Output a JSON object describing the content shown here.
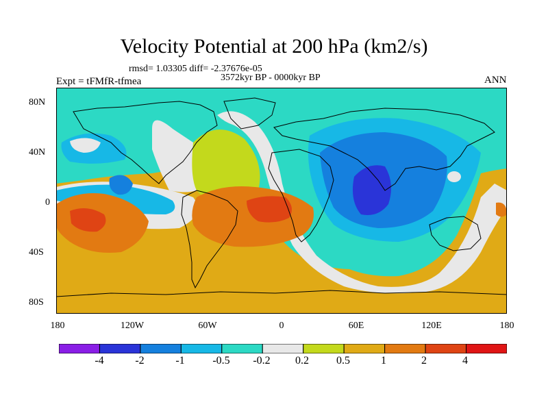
{
  "title": "Velocity Potential at 200 hPa (km2/s)",
  "rmsd_text": "rmsd= 1.03305 diff= -2.37676e-05",
  "period": "3572kyr BP - 0000kyr BP",
  "experiment": "Expt = tFMfR-tfmea",
  "season": "ANN",
  "chart_data": {
    "type": "filled-contour-map",
    "variable": "Velocity Potential at 200 hPa",
    "units": "km2/s",
    "lon_range": [
      -180,
      180
    ],
    "lat_range": [
      -90,
      90
    ],
    "y_ticks": [
      "80N",
      "40N",
      "0",
      "40S",
      "80S"
    ],
    "x_ticks": [
      "180",
      "120W",
      "60W",
      "0",
      "60E",
      "120E",
      "180"
    ],
    "contour_levels": [
      "-4",
      "-2",
      "-1",
      "-0.5",
      "-0.2",
      "0.2",
      "0.5",
      "1",
      "2",
      "4"
    ],
    "colorbar_colors": [
      "#8a1ee6",
      "#2a34d8",
      "#1580de",
      "#17b8e6",
      "#2cd9c4",
      "#e8e8e8",
      "#c3d91c",
      "#e0aa16",
      "#e27a12",
      "#df4414",
      "#e01515"
    ],
    "minimum_region": "Indian Ocean / South Asia (below -2)",
    "maximum_regions": [
      "Eastern South Pacific (2 to 4)",
      "Tropical South Atlantic (2 to 4)"
    ]
  }
}
